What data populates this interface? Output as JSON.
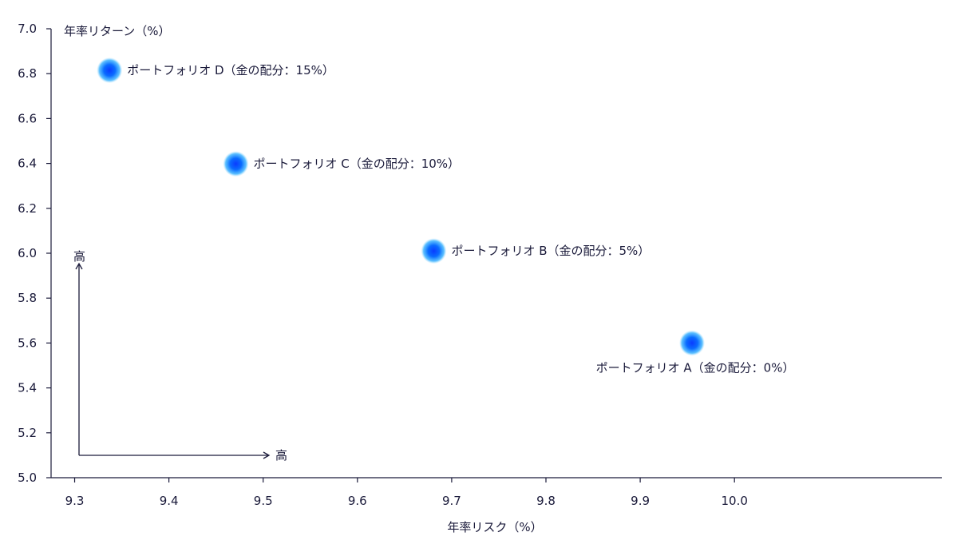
{
  "chart_data": {
    "type": "scatter",
    "xlabel": "年率リスク（%）",
    "ylabel": "年率リターン（%）",
    "xlim": [
      9.275,
      10.22
    ],
    "ylim": [
      5.0,
      7.0
    ],
    "x_ticks": [
      9.3,
      9.4,
      9.5,
      9.6,
      9.7,
      9.8,
      9.9,
      10.0
    ],
    "y_ticks": [
      5.0,
      5.2,
      5.4,
      5.6,
      5.8,
      6.0,
      6.2,
      6.4,
      6.6,
      6.8,
      7.0
    ],
    "points": [
      {
        "label": "ポートフォリオ D（金の配分：15%）",
        "x": 9.337,
        "y": 6.815,
        "label_pos": "right"
      },
      {
        "label": "ポートフォリオ C（金の配分：10%）",
        "x": 9.471,
        "y": 6.398,
        "label_pos": "right"
      },
      {
        "label": "ポートフォリオ B（金の配分：5%）",
        "x": 9.681,
        "y": 6.01,
        "label_pos": "right"
      },
      {
        "label": "ポートフォリオ A（金の配分：0%）",
        "x": 9.955,
        "y": 5.6,
        "label_pos": "below"
      }
    ],
    "marker_color": "#0a6cff",
    "grid": false,
    "annotation": {
      "x_high": "高",
      "y_high": "高"
    }
  }
}
